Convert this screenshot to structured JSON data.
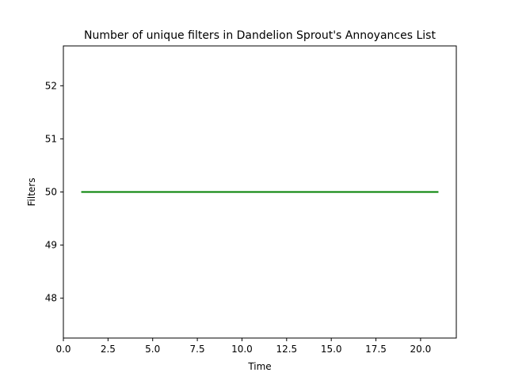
{
  "chart_data": {
    "type": "line",
    "title": "Number of unique filters in Dandelion Sprout's Annoyances List",
    "xlabel": "Time",
    "ylabel": "Filters",
    "xlim": [
      0,
      22
    ],
    "ylim": [
      47.25,
      52.75
    ],
    "xticks": [
      0.0,
      2.5,
      5.0,
      7.5,
      10.0,
      12.5,
      15.0,
      17.5,
      20.0
    ],
    "xtick_labels": [
      "0.0",
      "2.5",
      "5.0",
      "7.5",
      "10.0",
      "12.5",
      "15.0",
      "17.5",
      "20.0"
    ],
    "yticks": [
      48,
      49,
      50,
      51,
      52
    ],
    "ytick_labels": [
      "48",
      "49",
      "50",
      "51",
      "52"
    ],
    "grid": false,
    "legend": null,
    "series": [
      {
        "color": "#008000",
        "x": [
          1,
          21
        ],
        "y": [
          50,
          50
        ]
      }
    ]
  }
}
